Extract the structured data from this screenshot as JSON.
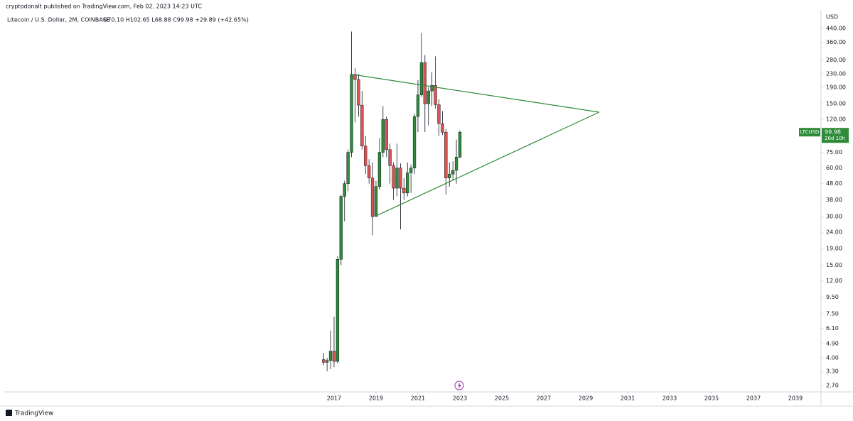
{
  "header": {
    "published": "cryptodonalt published on TradingView.com, Feb 02, 2023 14:23 UTC",
    "ohlc_text": "O70.10 H102.65 L68.88 C99.98 +29.89 (+42.65%)",
    "footer": "TradingView"
  },
  "chart_data": {
    "type": "candlestick",
    "title": "Litecoin / U.S. Dollar, 2M, COINBASE",
    "y_label": "USD",
    "log_scale": true,
    "up_color": "#2e8b3a",
    "down_color": "#e05252",
    "wick_color": "#131722",
    "x": [
      2016.5,
      2016.667,
      2016.833,
      2017.0,
      2017.167,
      2017.333,
      2017.5,
      2017.667,
      2017.833,
      2018.0,
      2018.167,
      2018.333,
      2018.5,
      2018.667,
      2018.833,
      2019.0,
      2019.167,
      2019.333,
      2019.5,
      2019.667,
      2019.833,
      2020.0,
      2020.167,
      2020.333,
      2020.5,
      2020.667,
      2020.833,
      2021.0,
      2021.167,
      2021.333,
      2021.5,
      2021.667,
      2021.833,
      2022.0,
      2022.167,
      2022.333,
      2022.5,
      2022.667,
      2022.833,
      2023.0
    ],
    "open": [
      3.9,
      3.75,
      3.85,
      4.4,
      3.8,
      16.3,
      40,
      48,
      75,
      228,
      212,
      147,
      82,
      62,
      52,
      30,
      46,
      75,
      120,
      78,
      62,
      45,
      60,
      45,
      42,
      56,
      60,
      125,
      170,
      270,
      150,
      180,
      195,
      148,
      113,
      100,
      52,
      55,
      58,
      70.1
    ],
    "high": [
      4.3,
      4.0,
      5.9,
      7.2,
      17,
      41,
      50,
      78,
      420,
      250,
      230,
      180,
      95,
      68,
      65,
      50,
      92,
      145,
      125,
      85,
      65,
      85,
      64,
      52,
      65,
      63,
      130,
      210,
      412,
      300,
      190,
      235,
      295,
      160,
      135,
      105,
      65,
      66,
      90,
      102.65
    ],
    "low": [
      3.6,
      3.3,
      3.4,
      3.5,
      3.7,
      15,
      28,
      43,
      70,
      115,
      125,
      78,
      55,
      48,
      23,
      30,
      44,
      70,
      70,
      48,
      38,
      40,
      25,
      38,
      40,
      42,
      55,
      100,
      165,
      100,
      110,
      145,
      140,
      95,
      96,
      41,
      46,
      50,
      48,
      68.88
    ],
    "close": [
      3.75,
      3.85,
      4.4,
      3.8,
      16.3,
      40,
      48,
      75,
      228,
      212,
      147,
      82,
      62,
      52,
      30,
      46,
      75,
      120,
      78,
      62,
      45,
      60,
      45,
      42,
      56,
      60,
      125,
      170,
      270,
      150,
      180,
      195,
      148,
      113,
      100,
      52,
      55,
      58,
      70.1,
      99.98
    ],
    "trendlines": [
      {
        "color": "#2e8b3a",
        "x": [
          2017.95,
          2029.64
        ],
        "y": [
          227,
          133
        ]
      },
      {
        "color": "#2e8b3a",
        "x": [
          2018.93,
          2029.64
        ],
        "y": [
          30,
          133
        ]
      }
    ],
    "last_price": {
      "symbol": "LTCUSD",
      "value": 99.98,
      "countdown": "26d 10h",
      "color": "#2e8b3a"
    },
    "xlim": [
      2001.07,
      2040.22
    ],
    "xticks": [
      2017,
      2019,
      2021,
      2023,
      2025,
      2027,
      2029,
      2031,
      2033,
      2035,
      2037,
      2039
    ],
    "ylim": [
      2.46,
      659
    ],
    "yticks": [
      {
        "value": 440,
        "label": "440.00"
      },
      {
        "value": 360,
        "label": "360.00"
      },
      {
        "value": 280,
        "label": "280.00"
      },
      {
        "value": 230,
        "label": "230.00"
      },
      {
        "value": 190,
        "label": "190.00"
      },
      {
        "value": 150,
        "label": "150.00"
      },
      {
        "value": 120,
        "label": "120.00"
      },
      {
        "value": 75,
        "label": "75.00"
      },
      {
        "value": 60,
        "label": "60.00"
      },
      {
        "value": 48,
        "label": "48.00"
      },
      {
        "value": 38,
        "label": "38.00"
      },
      {
        "value": 30,
        "label": "30.00"
      },
      {
        "value": 24,
        "label": "24.00"
      },
      {
        "value": 19,
        "label": "19.00"
      },
      {
        "value": 15,
        "label": "15.00"
      },
      {
        "value": 12,
        "label": "12.00"
      },
      {
        "value": 9.5,
        "label": "9.50"
      },
      {
        "value": 7.5,
        "label": "7.50"
      },
      {
        "value": 6.1,
        "label": "6.10"
      },
      {
        "value": 4.9,
        "label": "4.90"
      },
      {
        "value": 4,
        "label": "4.00"
      },
      {
        "value": 3.3,
        "label": "3.30"
      },
      {
        "value": 2.7,
        "label": "2.70"
      }
    ]
  }
}
